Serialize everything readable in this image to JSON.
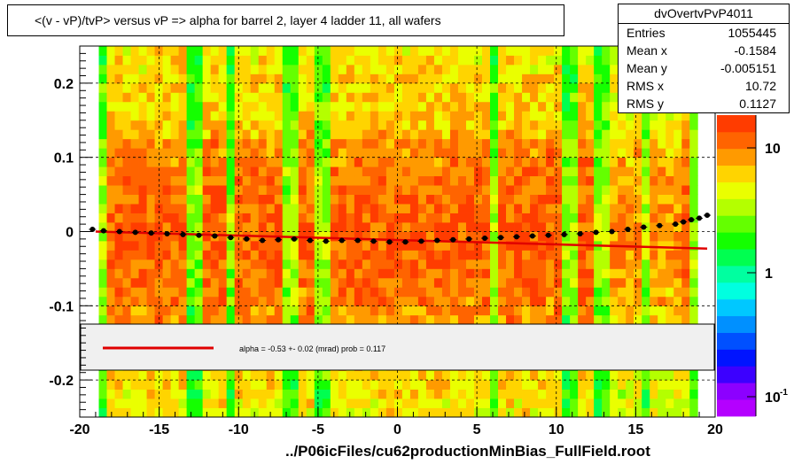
{
  "chart_data": {
    "type": "heatmap",
    "title": "<(v - vP)/tvP> versus   vP => alpha for barrel 2, layer 4 ladder 11, all wafers",
    "xlabel": "",
    "ylabel": "",
    "xlim": [
      -20,
      20
    ],
    "ylim": [
      -0.25,
      0.25
    ],
    "x_ticks": [
      "-20",
      "-15",
      "-10",
      "-5",
      "0",
      "5",
      "10",
      "15",
      "20"
    ],
    "y_ticks": [
      "0.2",
      "0.1",
      "0",
      "-0.1",
      "-0.2"
    ],
    "grid": true,
    "colorbar": {
      "scale": "log",
      "tick_labels": [
        "10",
        "1",
        "10"
      ],
      "tick_exponents": [
        "",
        "",
        "-1"
      ]
    },
    "profile_points": [
      [
        -19.2,
        0.003
      ],
      [
        -18.5,
        0.001
      ],
      [
        -17.5,
        0.0
      ],
      [
        -16.5,
        -0.001
      ],
      [
        -15.5,
        -0.002
      ],
      [
        -14.5,
        -0.003
      ],
      [
        -13.5,
        -0.004
      ],
      [
        -12.5,
        -0.005
      ],
      [
        -11.5,
        -0.006
      ],
      [
        -10.5,
        -0.008
      ],
      [
        -9.5,
        -0.01
      ],
      [
        -8.5,
        -0.012
      ],
      [
        -7.5,
        -0.011
      ],
      [
        -6.5,
        -0.01
      ],
      [
        -5.5,
        -0.012
      ],
      [
        -4.5,
        -0.013
      ],
      [
        -3.5,
        -0.012
      ],
      [
        -2.5,
        -0.012
      ],
      [
        -1.5,
        -0.013
      ],
      [
        -0.5,
        -0.014
      ],
      [
        0.5,
        -0.014
      ],
      [
        1.5,
        -0.013
      ],
      [
        2.5,
        -0.012
      ],
      [
        3.5,
        -0.011
      ],
      [
        4.5,
        -0.01
      ],
      [
        5.5,
        -0.009
      ],
      [
        6.5,
        -0.008
      ],
      [
        7.5,
        -0.007
      ],
      [
        8.5,
        -0.006
      ],
      [
        9.5,
        -0.005
      ],
      [
        10.5,
        -0.004
      ],
      [
        11.5,
        -0.003
      ],
      [
        12.5,
        -0.001
      ],
      [
        13.5,
        0.0
      ],
      [
        14.5,
        0.003
      ],
      [
        15.5,
        0.006
      ],
      [
        16.5,
        0.008
      ],
      [
        17.5,
        0.01
      ],
      [
        18.0,
        0.013
      ],
      [
        18.5,
        0.016
      ],
      [
        19.0,
        0.018
      ],
      [
        19.5,
        0.022
      ]
    ],
    "fit": {
      "x_range": [
        -19,
        19.5
      ],
      "y_start": 0.0,
      "y_end": -0.023,
      "legend_label": "alpha =   -0.53 +-  0.02 (mrad) prob = 0.117"
    },
    "stats": {
      "title": "dvOvertvPvP4011",
      "rows": [
        {
          "label": "Entries",
          "value": "1055445"
        },
        {
          "label": "Mean x",
          "value": "-0.1584"
        },
        {
          "label": "Mean y",
          "value": "-0.005151"
        },
        {
          "label": "RMS x",
          "value": "10.72"
        },
        {
          "label": "RMS y",
          "value": "0.1127"
        }
      ]
    },
    "file_label": "../P06icFiles/cu62productionMinBias_FullField.root"
  }
}
